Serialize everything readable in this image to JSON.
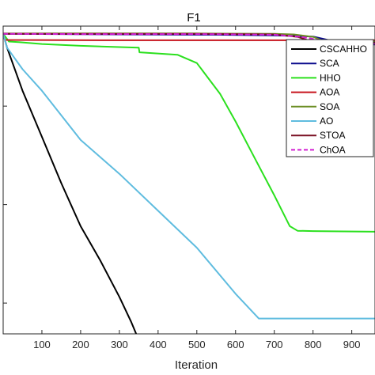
{
  "chart_data": {
    "type": "line",
    "title": "F1",
    "xlabel": "Iteration",
    "ylabel": "",
    "xlim": [
      0,
      960
    ],
    "xticks": [
      100,
      200,
      300,
      400,
      500,
      600,
      700,
      800,
      900
    ],
    "ylim": [
      0,
      100
    ],
    "grid": false,
    "legend_position": "top-right",
    "series": [
      {
        "name": "CSCAHHO",
        "color": "#000000",
        "dash": "",
        "x": [
          0,
          10,
          50,
          100,
          150,
          200,
          250,
          300,
          330,
          350
        ],
        "y": [
          97.5,
          93,
          79,
          64,
          49,
          35,
          24,
          12,
          4,
          -2
        ]
      },
      {
        "name": "SCA",
        "color": "#0a0a8c",
        "dash": "",
        "x": [
          0,
          300,
          550,
          700,
          800,
          850,
          880,
          960
        ],
        "y": [
          97.5,
          97.3,
          97.2,
          97,
          96.6,
          95.2,
          94,
          94
        ]
      },
      {
        "name": "HHO",
        "color": "#2be01e",
        "dash": "",
        "x": [
          0,
          15,
          40,
          100,
          200,
          300,
          350,
          352,
          450,
          500,
          560,
          600,
          650,
          700,
          740,
          760,
          800,
          960
        ],
        "y": [
          97.5,
          95,
          94.8,
          94.2,
          93.6,
          93.2,
          93,
          91.5,
          90.7,
          88,
          78,
          69,
          57,
          45,
          35,
          33.5,
          33.4,
          33.2
        ]
      },
      {
        "name": "AOA",
        "color": "#c8141e",
        "dash": "",
        "x": [
          0,
          5,
          300,
          600,
          960
        ],
        "y": [
          97.5,
          95.5,
          95.4,
          95.4,
          95.4
        ]
      },
      {
        "name": "SOA",
        "color": "#6b8e23",
        "dash": "",
        "x": [
          0,
          500,
          700,
          750,
          800,
          820,
          840,
          960
        ],
        "y": [
          97.6,
          97.6,
          97.5,
          97.3,
          96.5,
          95.5,
          95,
          95
        ]
      },
      {
        "name": "AO",
        "color": "#5fbcdf",
        "dash": "",
        "x": [
          0,
          10,
          50,
          100,
          200,
          300,
          400,
          500,
          600,
          660,
          670,
          700,
          960
        ],
        "y": [
          97.5,
          93,
          86,
          79,
          63,
          52,
          40,
          28,
          13,
          5,
          5,
          5,
          5
        ]
      },
      {
        "name": "STOA",
        "color": "#7a1024",
        "dash": "",
        "x": [
          0,
          200,
          500,
          700,
          760,
          790,
          810,
          820,
          960
        ],
        "y": [
          97.5,
          97.5,
          97.5,
          97.3,
          96.5,
          95.3,
          94.6,
          94.6,
          94.6
        ]
      },
      {
        "name": "ChOA",
        "color": "#d21ed2",
        "dash": "6,3",
        "x": [
          0,
          200,
          500,
          700,
          770,
          810,
          850,
          880,
          960
        ],
        "y": [
          97.5,
          97.4,
          97.4,
          97.2,
          96.5,
          95.6,
          94.6,
          94.3,
          94.3
        ]
      }
    ]
  }
}
